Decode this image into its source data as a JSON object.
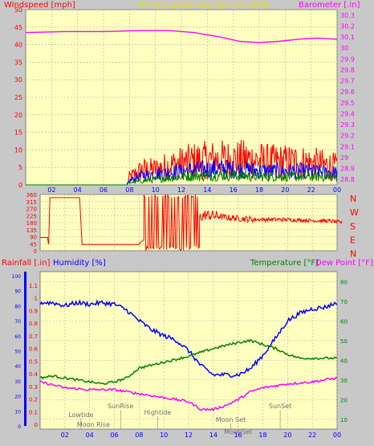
{
  "chart_data": [
    {
      "type": "line",
      "title": "24 hour graph day   April 11 2018",
      "left_label": "Windspeed [mph]",
      "right_label": "Barometer [.in]",
      "x_tick_labels": [
        "02",
        "04",
        "06",
        "08",
        "10",
        "12",
        "14",
        "16",
        "18",
        "20",
        "22",
        "00"
      ],
      "left_ticks": [
        "0",
        "5",
        "10",
        "15",
        "20",
        "25",
        "30",
        "35",
        "40",
        "45",
        "50"
      ],
      "right_ticks": [
        "28.8",
        "28.9",
        "29",
        "29.1",
        "29.2",
        "29.3",
        "29.4",
        "29.5",
        "29.6",
        "29.7",
        "29.8",
        "29.9",
        "30",
        "30.1",
        "30.2",
        "30.3"
      ],
      "xlim": [
        0,
        24
      ],
      "ylim_left": [
        0,
        50
      ],
      "ylim_right": [
        28.75,
        30.35
      ],
      "series": [
        {
          "color": "#ff00ff",
          "axis": "right",
          "points": [
            [
              0,
              30.14
            ],
            [
              3,
              30.15
            ],
            [
              6,
              30.15
            ],
            [
              9,
              30.16
            ],
            [
              11,
              30.16
            ],
            [
              13,
              30.14
            ],
            [
              15,
              30.1
            ],
            [
              16.5,
              30.06
            ],
            [
              18,
              30.05
            ],
            [
              19.5,
              30.06
            ],
            [
              21,
              30.08
            ],
            [
              22.5,
              30.09
            ],
            [
              24,
              30.08
            ]
          ]
        },
        {
          "color": "#ff0000",
          "axis": "left",
          "noise": "gust",
          "points": [
            [
              0,
              0
            ],
            [
              7.8,
              0
            ],
            [
              8,
              3
            ],
            [
              9,
              6
            ],
            [
              10,
              6
            ],
            [
              11,
              7.5
            ],
            [
              12,
              8.5
            ],
            [
              13,
              9.5
            ],
            [
              15,
              10
            ],
            [
              17,
              10
            ],
            [
              19,
              9
            ],
            [
              21,
              9
            ],
            [
              22,
              8.5
            ],
            [
              24,
              7
            ]
          ]
        },
        {
          "color": "#0000ff",
          "axis": "left",
          "noise": "avg",
          "points": [
            [
              0,
              0
            ],
            [
              7.8,
              0
            ],
            [
              8,
              1.5
            ],
            [
              9,
              3.5
            ],
            [
              11,
              4.5
            ],
            [
              13,
              5.5
            ],
            [
              15,
              6
            ],
            [
              17,
              5.5
            ],
            [
              19,
              5
            ],
            [
              21,
              5
            ],
            [
              24,
              4.5
            ]
          ]
        },
        {
          "color": "#008000",
          "axis": "left",
          "noise": "avg",
          "points": [
            [
              0,
              0
            ],
            [
              7.8,
              0
            ],
            [
              8,
              0.8
            ],
            [
              10,
              2
            ],
            [
              12,
              3
            ],
            [
              14,
              3.5
            ],
            [
              16,
              3.5
            ],
            [
              18,
              3
            ],
            [
              20,
              3
            ],
            [
              22,
              3
            ],
            [
              24,
              3
            ]
          ]
        }
      ]
    },
    {
      "type": "line",
      "title": "",
      "left_ticks": [
        "0",
        "45",
        "90",
        "135",
        "180",
        "225",
        "270",
        "315",
        "360"
      ],
      "right_labels": [
        "N",
        "W",
        "S",
        "E",
        "N"
      ],
      "xlim": [
        0,
        24
      ],
      "ylim": [
        0,
        360
      ],
      "series": [
        {
          "color": "#ff0000",
          "points": [
            [
              -0.4,
              85
            ],
            [
              0.2,
              85
            ],
            [
              0.3,
              40
            ],
            [
              0.4,
              340
            ],
            [
              2.8,
              340
            ],
            [
              3.0,
              40
            ],
            [
              7.6,
              40
            ],
            [
              7.6,
              45
            ],
            [
              8,
              70
            ],
            [
              9.5,
              360
            ],
            [
              10,
              10
            ],
            [
              11,
              350
            ],
            [
              12,
              200
            ],
            [
              13,
              230
            ],
            [
              15,
              210
            ],
            [
              17,
              200
            ],
            [
              19,
              200
            ],
            [
              21,
              195
            ],
            [
              23,
              190
            ],
            [
              24,
              180
            ]
          ]
        }
      ]
    },
    {
      "type": "line",
      "title": "",
      "left_label_1": "Rainfall [.in]",
      "left_label_2": "Humidity [%]",
      "right_label_1": "Temperature [°F]",
      "right_label_2": "Dew Point [°F]",
      "x_tick_labels": [
        "02",
        "04",
        "06",
        "08",
        "10",
        "12",
        "14",
        "16",
        "18",
        "20",
        "22",
        "00"
      ],
      "rain_ticks": [
        "0",
        "0.1",
        "0.2",
        "0.3",
        "0.4",
        "0.5",
        "0.6",
        "0.7",
        "0.8",
        "0.9",
        "1",
        "1.1"
      ],
      "humidity_ticks": [
        "0",
        "10",
        "20",
        "30",
        "40",
        "50",
        "60",
        "70",
        "80",
        "90",
        "100"
      ],
      "temp_ticks": [
        "10",
        "20",
        "30",
        "40",
        "50",
        "60",
        "70",
        "80"
      ],
      "xlim": [
        0,
        24
      ],
      "ylim_humidity": [
        0,
        100
      ],
      "ylim_temp": [
        5,
        85
      ],
      "annotations": [
        {
          "label": "Lowtide",
          "x": 3.3
        },
        {
          "label": "Moon Rise",
          "x": 4.3
        },
        {
          "label": "SunRise",
          "x": 6.5
        },
        {
          "label": "Hightide",
          "x": 9.5
        },
        {
          "label": "Moon Set",
          "x": 15.4
        },
        {
          "label": "MoonSet",
          "x": 16
        },
        {
          "label": "SunSet",
          "x": 19.4
        }
      ],
      "series": [
        {
          "name": "Humidity",
          "color": "#0000ff",
          "axis": "humidity",
          "points": [
            [
              0,
              82
            ],
            [
              1,
              82
            ],
            [
              2,
              80
            ],
            [
              3,
              82
            ],
            [
              4,
              81
            ],
            [
              5,
              82
            ],
            [
              6,
              81
            ],
            [
              7,
              77
            ],
            [
              8,
              70
            ],
            [
              9,
              64
            ],
            [
              10,
              60
            ],
            [
              11,
              57
            ],
            [
              12,
              50
            ],
            [
              13,
              40
            ],
            [
              14,
              34
            ],
            [
              15,
              34
            ],
            [
              16,
              34
            ],
            [
              17,
              38
            ],
            [
              18,
              47
            ],
            [
              19,
              58
            ],
            [
              20,
              70
            ],
            [
              21,
              75
            ],
            [
              22,
              78
            ],
            [
              23,
              79
            ],
            [
              24,
              82
            ]
          ]
        },
        {
          "name": "Temperature",
          "color": "#008000",
          "axis": "temp",
          "points": [
            [
              0,
              31
            ],
            [
              1,
              32
            ],
            [
              2,
              31
            ],
            [
              3,
              30
            ],
            [
              4,
              29
            ],
            [
              5,
              28
            ],
            [
              6,
              29
            ],
            [
              7,
              31
            ],
            [
              8,
              36
            ],
            [
              10,
              39
            ],
            [
              12,
              42
            ],
            [
              14,
              46
            ],
            [
              16,
              49
            ],
            [
              17,
              50
            ],
            [
              18,
              48
            ],
            [
              19,
              46
            ],
            [
              20,
              43
            ],
            [
              21,
              41
            ],
            [
              22,
              41
            ],
            [
              24,
              41
            ]
          ]
        },
        {
          "name": "Dew Point",
          "color": "#ff00ff",
          "axis": "temp",
          "points": [
            [
              0,
              29
            ],
            [
              2,
              26
            ],
            [
              4,
              25
            ],
            [
              6,
              25
            ],
            [
              8,
              23
            ],
            [
              10,
              21
            ],
            [
              12,
              19
            ],
            [
              13,
              15
            ],
            [
              14,
              15
            ],
            [
              15,
              17
            ],
            [
              16,
              20
            ],
            [
              17,
              24
            ],
            [
              18,
              26
            ],
            [
              20,
              28
            ],
            [
              22,
              29
            ],
            [
              24,
              31
            ]
          ]
        }
      ]
    }
  ]
}
